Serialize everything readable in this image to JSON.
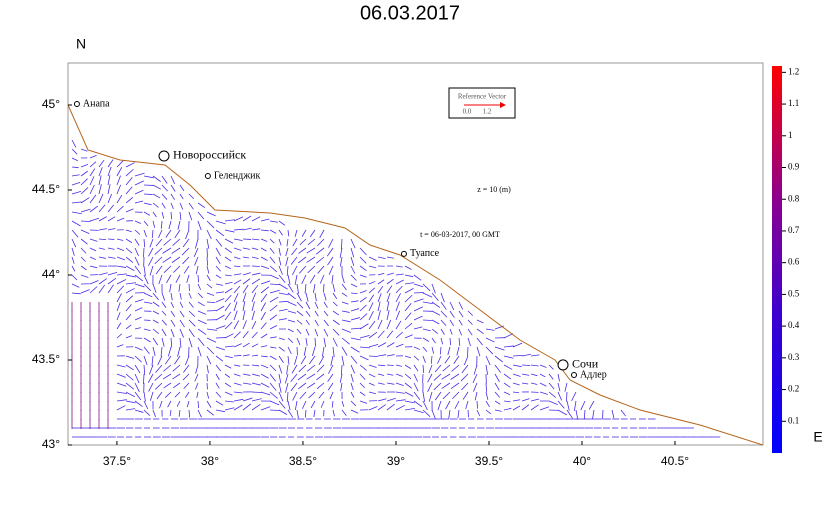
{
  "map": {
    "title": "06.03.2017",
    "lat_label": "N",
    "lon_label": "E",
    "xlim": [
      37.237,
      40.973
    ],
    "ylim": [
      43,
      45.247
    ],
    "xticks": [
      {
        "value": 37.5,
        "label": "37.5°"
      },
      {
        "value": 38,
        "label": "38°"
      },
      {
        "value": 38.5,
        "label": "38.5°"
      },
      {
        "value": 39,
        "label": "39°"
      },
      {
        "value": 39.5,
        "label": "39.5°"
      },
      {
        "value": 40,
        "label": "40°"
      },
      {
        "value": 40.5,
        "label": "40.5°"
      }
    ],
    "yticks": [
      {
        "value": 43,
        "label": "43°"
      },
      {
        "value": 43.5,
        "label": "43.5°"
      },
      {
        "value": 44,
        "label": "44°"
      },
      {
        "value": 44.5,
        "label": "44.5°"
      },
      {
        "value": 45,
        "label": "45°"
      }
    ],
    "cities": [
      {
        "name": "Анапа",
        "lon": 37.285,
        "lat": 45.006,
        "major": false
      },
      {
        "name": "Новороссийск",
        "lon": 37.753,
        "lat": 44.7,
        "major": true
      },
      {
        "name": "Геленджик",
        "lon": 37.989,
        "lat": 44.582,
        "major": false
      },
      {
        "name": "Туапсе",
        "lon": 39.043,
        "lat": 44.124,
        "major": false
      },
      {
        "name": "Сочи",
        "lon": 39.898,
        "lat": 43.471,
        "major": true
      },
      {
        "name": "Адлер",
        "lon": 39.957,
        "lat": 43.412,
        "major": false
      }
    ],
    "depth_note": "z = 10 (m)",
    "time_note": "t = 06-03-2017, 00 GMT",
    "reference_vector": {
      "title": "Reference Vector",
      "start": "0.0",
      "end": "1.2"
    },
    "colorbar": {
      "clim": [
        0,
        1.22
      ],
      "ticks": [
        0.1,
        0.2,
        0.3,
        0.4,
        0.5,
        0.6,
        0.7,
        0.8,
        0.9,
        1,
        1.1,
        1.2
      ]
    }
  }
}
